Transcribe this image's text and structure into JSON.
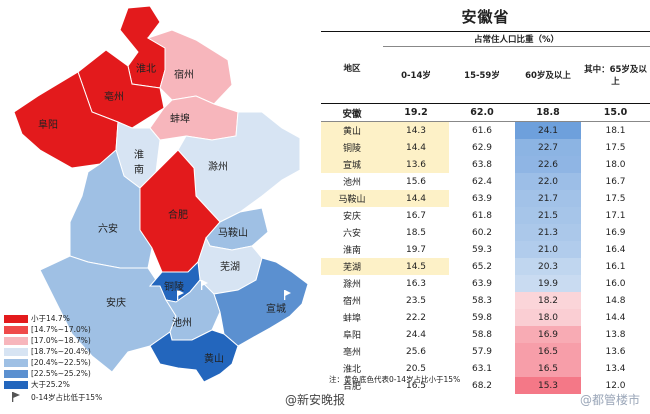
{
  "title": "安徽省",
  "table": {
    "headers": {
      "region": "地区",
      "group": "占常住人口比重（%）",
      "c1": "0-14岁",
      "c2": "15-59岁",
      "c3": "60岁及以上",
      "c4": "其中：65岁及以上"
    },
    "province": {
      "name": "安徽",
      "v1": "19.2",
      "v2": "62.0",
      "v3": "18.8",
      "v4": "15.0"
    },
    "rows": [
      {
        "name": "黄山",
        "v1": "14.3",
        "v2": "61.6",
        "v3": "24.1",
        "v4": "18.1",
        "hl": true
      },
      {
        "name": "铜陵",
        "v1": "14.4",
        "v2": "62.9",
        "v3": "22.7",
        "v4": "17.5",
        "hl": true
      },
      {
        "name": "宣城",
        "v1": "13.6",
        "v2": "63.8",
        "v3": "22.6",
        "v4": "18.0",
        "hl": true
      },
      {
        "name": "池州",
        "v1": "15.6",
        "v2": "62.4",
        "v3": "22.0",
        "v4": "16.7",
        "hl": false
      },
      {
        "name": "马鞍山",
        "v1": "14.4",
        "v2": "63.9",
        "v3": "21.7",
        "v4": "17.5",
        "hl": true
      },
      {
        "name": "安庆",
        "v1": "16.7",
        "v2": "61.8",
        "v3": "21.5",
        "v4": "17.1",
        "hl": false
      },
      {
        "name": "六安",
        "v1": "18.5",
        "v2": "60.2",
        "v3": "21.3",
        "v4": "16.9",
        "hl": false
      },
      {
        "name": "淮南",
        "v1": "19.7",
        "v2": "59.3",
        "v3": "21.0",
        "v4": "16.4",
        "hl": false
      },
      {
        "name": "芜湖",
        "v1": "14.5",
        "v2": "65.2",
        "v3": "20.3",
        "v4": "16.1",
        "hl": true
      },
      {
        "name": "滁州",
        "v1": "16.3",
        "v2": "63.9",
        "v3": "19.9",
        "v4": "16.0",
        "hl": false
      },
      {
        "name": "宿州",
        "v1": "23.5",
        "v2": "58.3",
        "v3": "18.2",
        "v4": "14.8",
        "hl": false
      },
      {
        "name": "蚌埠",
        "v1": "22.2",
        "v2": "59.8",
        "v3": "18.0",
        "v4": "14.4",
        "hl": false
      },
      {
        "name": "阜阳",
        "v1": "24.4",
        "v2": "58.8",
        "v3": "16.9",
        "v4": "13.8",
        "hl": false
      },
      {
        "name": "亳州",
        "v1": "25.6",
        "v2": "57.9",
        "v3": "16.5",
        "v4": "13.6",
        "hl": false
      },
      {
        "name": "淮北",
        "v1": "20.5",
        "v2": "63.1",
        "v3": "16.5",
        "v4": "13.4",
        "hl": false
      },
      {
        "name": "合肥",
        "v1": "16.5",
        "v2": "68.2",
        "v3": "15.3",
        "v4": "12.0",
        "hl": false
      }
    ]
  },
  "map": {
    "labels": {
      "huaibei": "淮北",
      "bozhou": "亳州",
      "suzhou": "宿州",
      "fuyang": "阜阳",
      "bengbu": "蚌埠",
      "huainan": "淮南",
      "chuzhou": "滁州",
      "liuan": "六安",
      "hefei": "合肥",
      "maanshan": "马鞍山",
      "wuhu": "芜湖",
      "anqing": "安庆",
      "tongling": "铜陵",
      "chizhou": "池州",
      "xuancheng": "宣城",
      "huangshan": "黄山"
    }
  },
  "legend": [
    {
      "label": "小于14.7%",
      "color": "#e31a1c"
    },
    {
      "label": "[14.7%~17.0%)",
      "color": "#ef4a4a"
    },
    {
      "label": "[17.0%~18.7%)",
      "color": "#f7b6bc"
    },
    {
      "label": "[18.7%~20.4%)",
      "color": "#d7e4f3"
    },
    {
      "label": "[20.4%~22.5%)",
      "color": "#9fc0e4"
    },
    {
      "label": "[22.5%~25.2%)",
      "color": "#5b90d0"
    },
    {
      "label": "大于25.2%",
      "color": "#2366bd"
    }
  ],
  "legend_note": "0-14岁占比低于15%",
  "note": "注：黄色底色代表0-14岁占比小于15%",
  "weibo": "@新安晚报",
  "watermark": "@都管楼市",
  "colors": {
    "highlight": "#fdf1c7"
  }
}
